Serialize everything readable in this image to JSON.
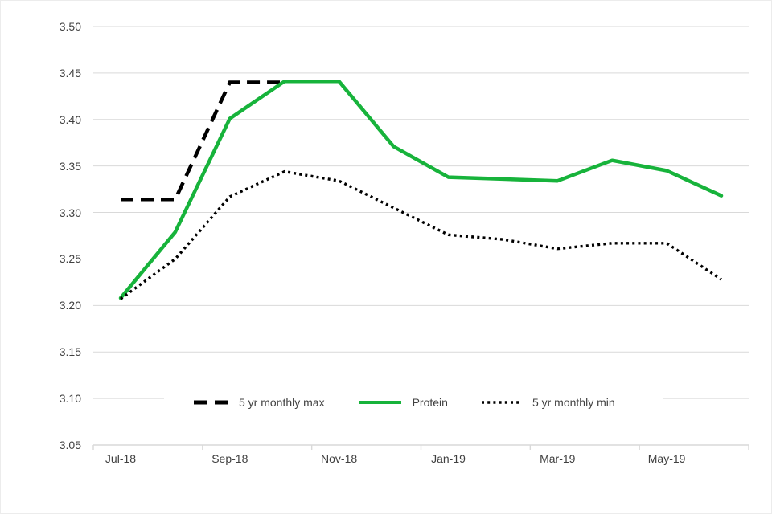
{
  "chart_data": {
    "type": "line",
    "title": "",
    "xlabel": "",
    "ylabel": "",
    "categories": [
      "Jul-18",
      "Aug-18",
      "Sep-18",
      "Oct-18",
      "Nov-18",
      "Dec-18",
      "Jan-19",
      "Feb-19",
      "Mar-19",
      "Apr-19",
      "May-19",
      "Jun-19"
    ],
    "x_tick_labels": [
      "Jul-18",
      "Sep-18",
      "Nov-18",
      "Jan-19",
      "Mar-19",
      "May-19"
    ],
    "yticks": [
      "3.05",
      "3.10",
      "3.15",
      "3.20",
      "3.25",
      "3.30",
      "3.35",
      "3.40",
      "3.45",
      "3.50"
    ],
    "ylim": [
      3.05,
      3.5
    ],
    "ytick_step": 0.05,
    "grid": true,
    "legend_position": "bottom-inside",
    "series": [
      {
        "name": "5 yr monthly max",
        "style": "dashed",
        "color": "#000000",
        "values": [
          3.314,
          3.314,
          3.44,
          3.44,
          null,
          null,
          null,
          null,
          null,
          null,
          null,
          null
        ]
      },
      {
        "name": "Protein",
        "style": "solid",
        "color": "#17B33B",
        "values": [
          3.208,
          3.279,
          3.401,
          3.441,
          3.441,
          3.371,
          3.338,
          3.336,
          3.334,
          3.356,
          3.345,
          3.318
        ]
      },
      {
        "name": "5 yr monthly min",
        "style": "dotted",
        "color": "#000000",
        "values": [
          3.207,
          3.25,
          3.317,
          3.344,
          3.334,
          3.305,
          3.276,
          3.271,
          3.261,
          3.267,
          3.267,
          3.228
        ]
      }
    ]
  },
  "colors": {
    "gridline": "#D9D9D9",
    "axis": "#D9D9D9",
    "tick": "#D9D9D9",
    "label_text": "#404040",
    "background": "#FFFFFF",
    "accent_green": "#17B33B",
    "series_black": "#000000"
  }
}
